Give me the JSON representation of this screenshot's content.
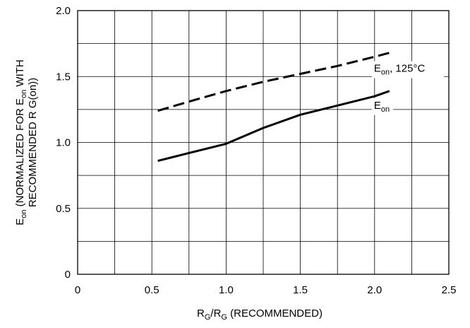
{
  "chart_data": {
    "type": "line",
    "xlabel": {
      "main": "R",
      "sub1": "G",
      "mid": "/R",
      "sub2": "G",
      "tail": " (RECOMMENDED)"
    },
    "ylabel": {
      "line1_main": "E",
      "line1_sub": "on",
      "line1_mid": " (NORMALIZED FOR E",
      "line1_sub2": "on",
      "line1_tail": " WITH",
      "line2": "RECOMMENDED R G(on))"
    },
    "xlim": [
      0,
      2.5
    ],
    "ylim": [
      0,
      2.0
    ],
    "x_ticks": [
      0,
      0.5,
      1.0,
      1.5,
      2.0,
      2.5
    ],
    "x_tick_labels": [
      "0",
      "0.5",
      "1.0",
      "1.5",
      "2.0",
      "2.5"
    ],
    "y_ticks": [
      0,
      0.5,
      1.0,
      1.5,
      2.0
    ],
    "y_tick_labels": [
      "0",
      "0.5",
      "1.0",
      "1.5",
      "2.0"
    ],
    "x_grid": [
      0,
      0.25,
      0.5,
      0.75,
      1.0,
      1.25,
      1.5,
      1.75,
      2.0,
      2.25,
      2.5
    ],
    "y_grid": [
      0,
      0.25,
      0.5,
      0.75,
      1.0,
      1.25,
      1.5,
      1.75,
      2.0
    ],
    "grid": true,
    "series": [
      {
        "name": "Eon, 125°C",
        "label_main": "E",
        "label_sub": "on",
        "label_tail": ", 125°C",
        "style": "dashed",
        "x": [
          0.54,
          0.75,
          1.0,
          1.25,
          1.5,
          1.75,
          2.0,
          2.1
        ],
        "y": [
          1.24,
          1.31,
          1.39,
          1.46,
          1.52,
          1.58,
          1.65,
          1.68
        ]
      },
      {
        "name": "Eon",
        "label_main": "E",
        "label_sub": "on",
        "label_tail": "",
        "style": "solid",
        "x": [
          0.54,
          0.75,
          1.0,
          1.25,
          1.5,
          1.75,
          2.0,
          2.1
        ],
        "y": [
          0.86,
          0.92,
          0.99,
          1.11,
          1.21,
          1.28,
          1.35,
          1.39
        ]
      }
    ]
  }
}
